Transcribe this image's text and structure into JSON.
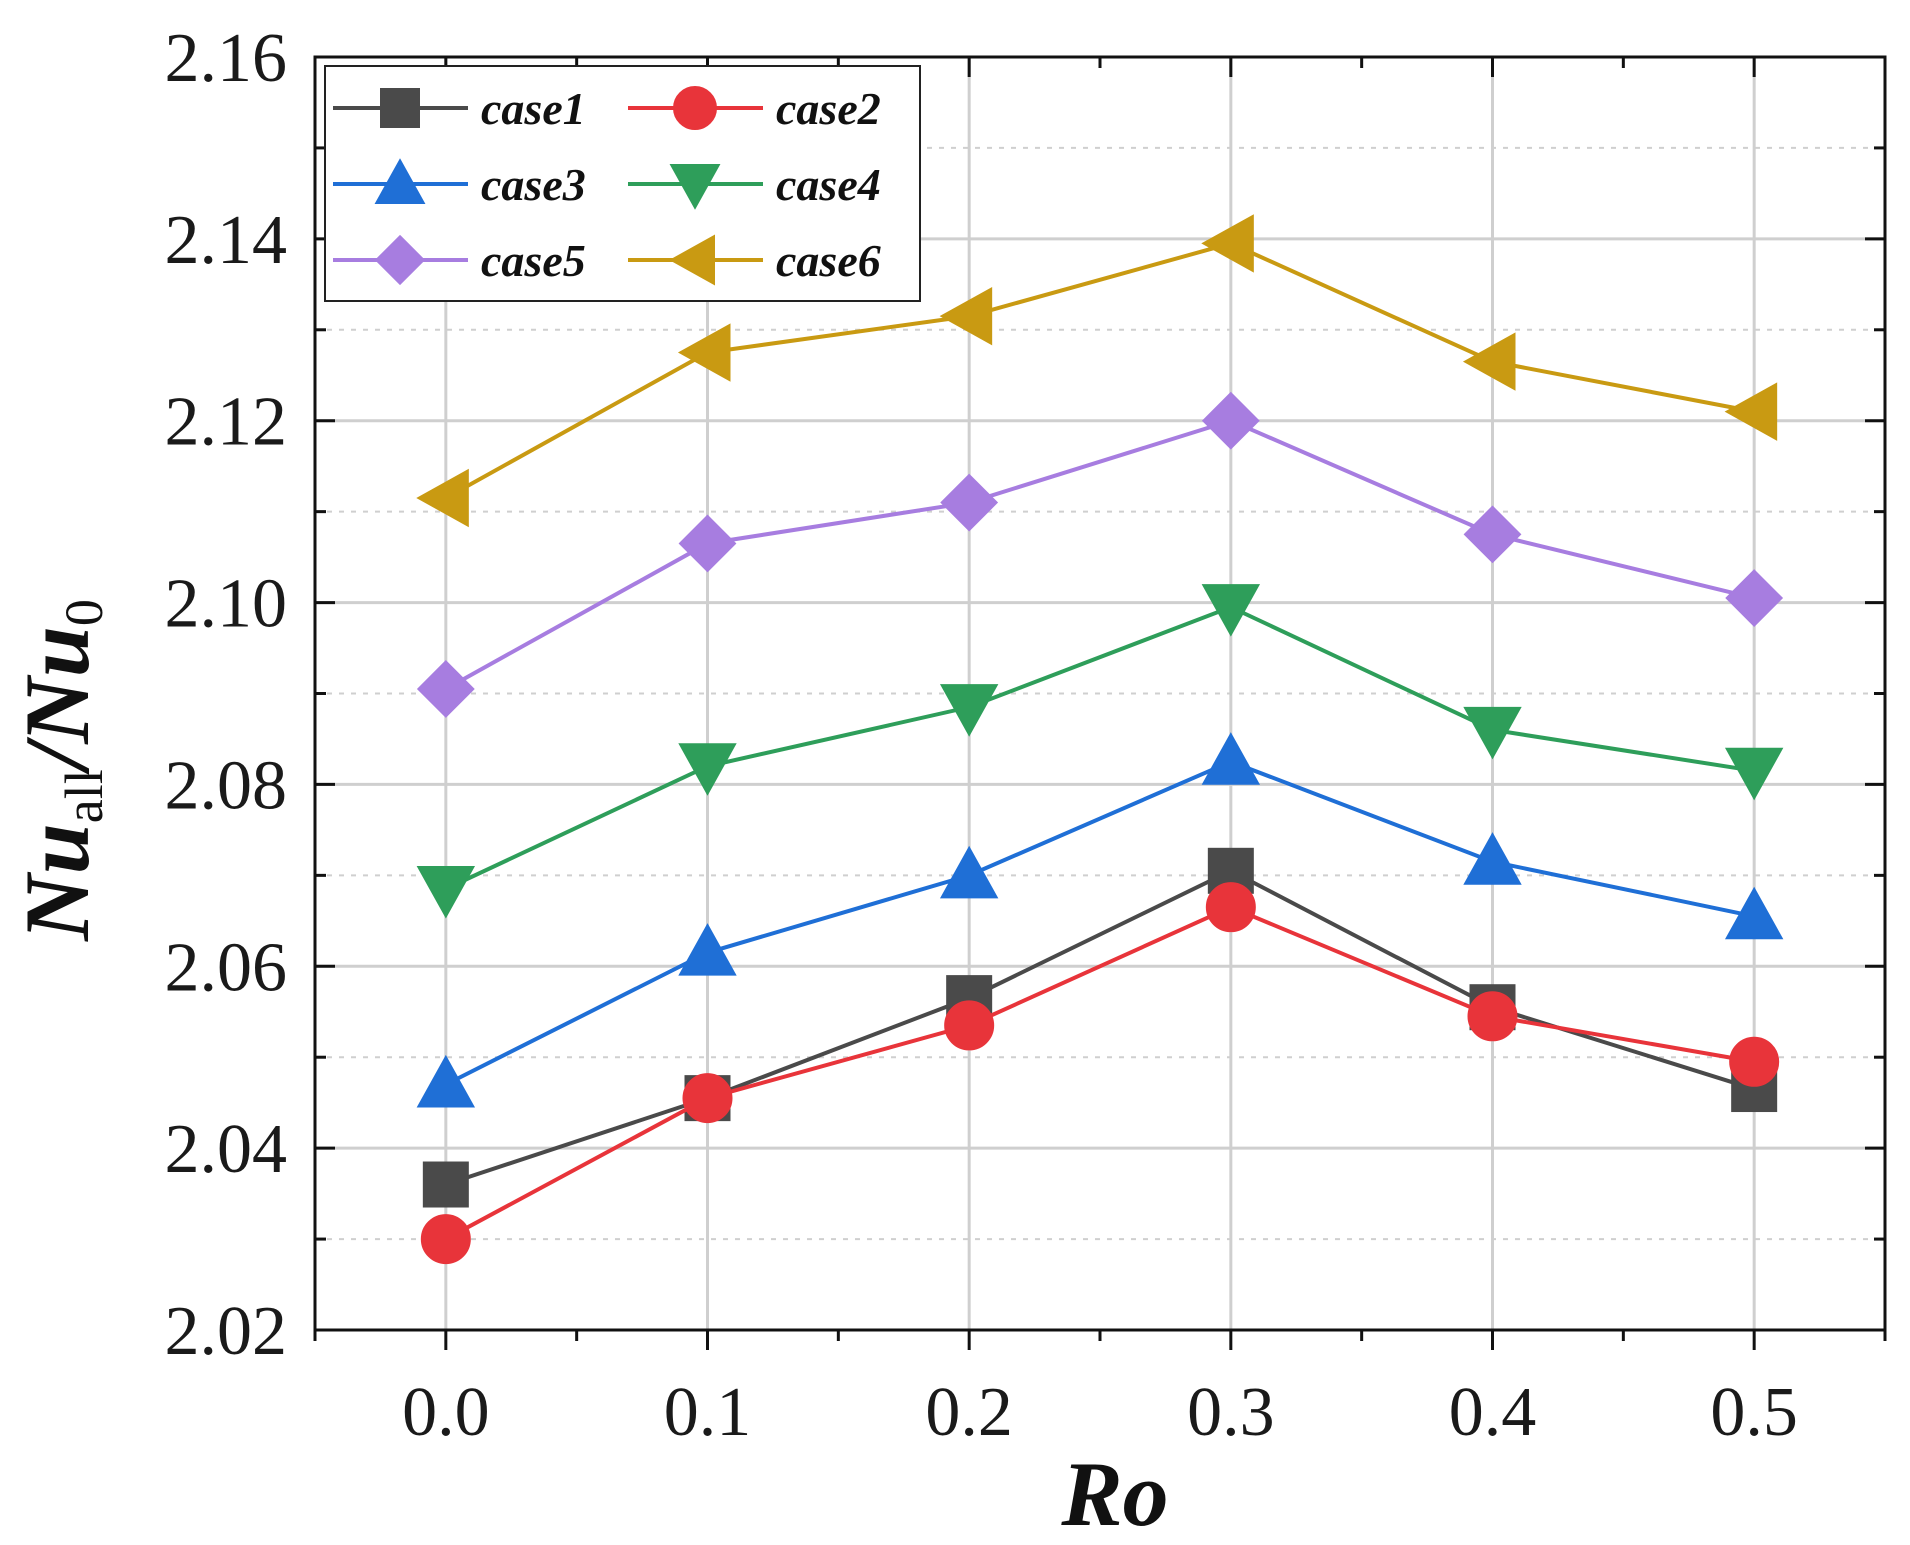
{
  "chart_data": {
    "type": "line",
    "title": "",
    "xlabel": "Ro",
    "ylabel": {
      "main": "Nu",
      "sub1": "all",
      "sep": "/Nu",
      "sub2": "0"
    },
    "x": [
      0.0,
      0.1,
      0.2,
      0.3,
      0.4,
      0.5
    ],
    "x_tick_labels": [
      "0.0",
      "0.1",
      "0.2",
      "0.3",
      "0.4",
      "0.5"
    ],
    "xlim": [
      -0.05,
      0.55
    ],
    "ylim": [
      2.02,
      2.16
    ],
    "y_ticks": [
      2.02,
      2.04,
      2.06,
      2.08,
      2.1,
      2.12,
      2.14,
      2.16
    ],
    "y_tick_labels": [
      "2.02",
      "2.04",
      "2.06",
      "2.08",
      "2.10",
      "2.12",
      "2.14",
      "2.16"
    ],
    "grid": true,
    "legend_position": "top-left",
    "series": [
      {
        "name": "case1",
        "marker": "square",
        "color": "#4a4a4a",
        "values": [
          2.036,
          2.0455,
          2.0565,
          2.0705,
          2.0555,
          2.0465
        ]
      },
      {
        "name": "case2",
        "marker": "circle",
        "color": "#e8343a",
        "values": [
          2.03,
          2.0455,
          2.0535,
          2.0665,
          2.0545,
          2.0495
        ]
      },
      {
        "name": "case3",
        "marker": "triangle-up",
        "color": "#1f6fd6",
        "values": [
          2.047,
          2.0615,
          2.07,
          2.0825,
          2.0715,
          2.0655
        ]
      },
      {
        "name": "case4",
        "marker": "triangle-down",
        "color": "#2e9e5a",
        "values": [
          2.0685,
          2.082,
          2.0885,
          2.0995,
          2.086,
          2.0815
        ]
      },
      {
        "name": "case5",
        "marker": "diamond",
        "color": "#a77de0",
        "values": [
          2.0905,
          2.1065,
          2.111,
          2.12,
          2.1075,
          2.1005
        ]
      },
      {
        "name": "case6",
        "marker": "triangle-left",
        "color": "#c99a12",
        "values": [
          2.1115,
          2.1275,
          2.1315,
          2.1395,
          2.1265,
          2.121
        ]
      }
    ]
  }
}
